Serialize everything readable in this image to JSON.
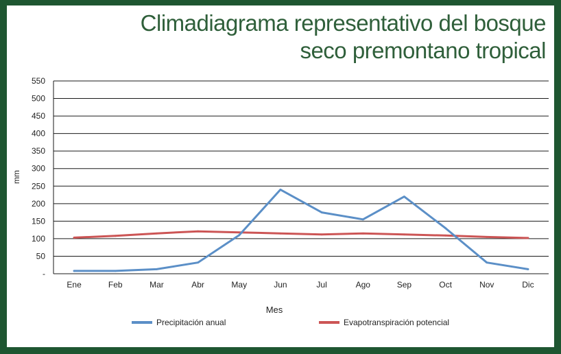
{
  "chart_data": {
    "type": "line",
    "title": "Climadiagrama representativo del bosque seco premontano tropical",
    "xlabel": "Mes",
    "ylabel": "mm",
    "categories": [
      "Ene",
      "Feb",
      "Mar",
      "Abr",
      "May",
      "Jun",
      "Jul",
      "Ago",
      "Sep",
      "Oct",
      "Nov",
      "Dic"
    ],
    "ylim": [
      0,
      550
    ],
    "yticks": [
      0,
      50,
      100,
      150,
      200,
      250,
      300,
      350,
      400,
      450,
      500,
      550
    ],
    "ytick_labels": [
      "-",
      "50",
      "100",
      "150",
      "200",
      "250",
      "300",
      "350",
      "400",
      "450",
      "500",
      "550"
    ],
    "grid": true,
    "legend_position": "bottom",
    "series": [
      {
        "name": "Precipitación anual",
        "color": "#5b8fc7",
        "values": [
          8,
          8,
          13,
          32,
          110,
          240,
          175,
          155,
          220,
          130,
          32,
          13
        ]
      },
      {
        "name": "Evapotranspiración potencial",
        "color": "#cc5555",
        "values": [
          103,
          108,
          115,
          121,
          118,
          115,
          112,
          115,
          112,
          109,
          105,
          102
        ]
      }
    ]
  }
}
